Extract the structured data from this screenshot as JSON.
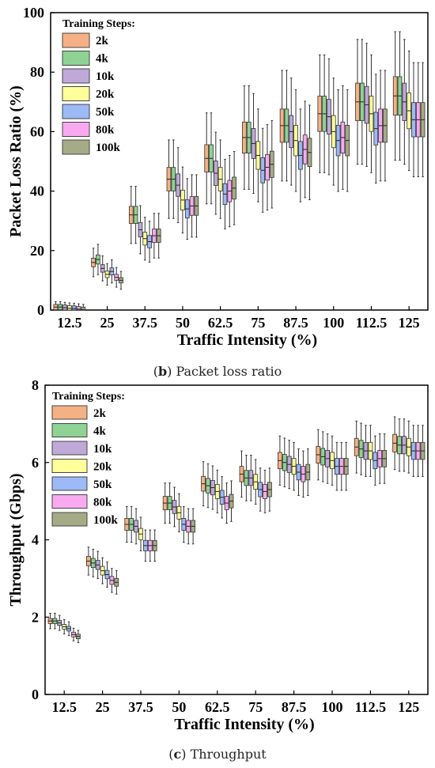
{
  "legend": {
    "title": "Training Steps:",
    "items": [
      {
        "label": "2k",
        "color": "#F4B183"
      },
      {
        "label": "4k",
        "color": "#8ED294"
      },
      {
        "label": "10k",
        "color": "#BFA9D9"
      },
      {
        "label": "20k",
        "color": "#FFFF99"
      },
      {
        "label": "50k",
        "color": "#9DB9F6"
      },
      {
        "label": "80k",
        "color": "#F9A9F0"
      },
      {
        "label": "100k",
        "color": "#A6AB87"
      }
    ]
  },
  "chart_data": [
    {
      "type": "box",
      "caption": {
        "label": "b",
        "text": "Packet loss ratio"
      },
      "xlabel": "Traffic Intensity (%)",
      "ylabel": "Packet Loss Ratio (%)",
      "ylim": [
        0,
        100
      ],
      "yticks": [
        0,
        20,
        40,
        60,
        80,
        100
      ],
      "categories": [
        "12.5",
        "25",
        "37.5",
        "50",
        "62.5",
        "75",
        "87.5",
        "100",
        "112.5",
        "125"
      ],
      "series": [
        {
          "name": "2k",
          "values": [
            1.0,
            16,
            32,
            44,
            51,
            58,
            62,
            66,
            70,
            72
          ]
        },
        {
          "name": "4k",
          "values": [
            1.0,
            17,
            32,
            44,
            51,
            58,
            62,
            66,
            70,
            72
          ]
        },
        {
          "name": "10k",
          "values": [
            0.8,
            14,
            27,
            42,
            46,
            56,
            60,
            65,
            69,
            70
          ]
        },
        {
          "name": "20k",
          "values": [
            0.6,
            12,
            24,
            37,
            44,
            52,
            57,
            60,
            66,
            67
          ]
        },
        {
          "name": "50k",
          "values": [
            0.5,
            13,
            23,
            34,
            39,
            47,
            52,
            57,
            61,
            64
          ]
        },
        {
          "name": "80k",
          "values": [
            0.3,
            11,
            25,
            35,
            40,
            48,
            54,
            58,
            62,
            64
          ]
        },
        {
          "name": "100k",
          "values": [
            0.1,
            10,
            25,
            35,
            41,
            49,
            53,
            57,
            62,
            64
          ]
        }
      ]
    },
    {
      "type": "box",
      "caption": {
        "label": "c",
        "text": "Throughput"
      },
      "xlabel": "Traffic Intensity (%)",
      "ylabel": "Throughput (Gbps)",
      "ylim": [
        0,
        8
      ],
      "yticks": [
        0,
        2,
        4,
        6,
        8
      ],
      "categories": [
        "12.5",
        "25",
        "37.5",
        "50",
        "62.5",
        "75",
        "87.5",
        "100",
        "112.5",
        "125"
      ],
      "series": [
        {
          "name": "2k",
          "values": [
            1.9,
            3.45,
            4.4,
            4.95,
            5.45,
            5.7,
            6.05,
            6.2,
            6.4,
            6.5
          ]
        },
        {
          "name": "4k",
          "values": [
            1.9,
            3.4,
            4.4,
            4.95,
            5.4,
            5.6,
            6.0,
            6.15,
            6.35,
            6.45
          ]
        },
        {
          "name": "10k",
          "values": [
            1.85,
            3.35,
            4.35,
            4.85,
            5.35,
            5.6,
            5.95,
            6.1,
            6.3,
            6.45
          ]
        },
        {
          "name": "20k",
          "values": [
            1.75,
            3.2,
            4.15,
            4.7,
            5.25,
            5.5,
            5.9,
            6.05,
            6.3,
            6.4
          ]
        },
        {
          "name": "50k",
          "values": [
            1.7,
            3.1,
            3.85,
            4.4,
            5.1,
            5.3,
            5.75,
            5.9,
            6.05,
            6.3
          ]
        },
        {
          "name": "80k",
          "values": [
            1.55,
            2.95,
            3.85,
            4.35,
            4.95,
            5.25,
            5.7,
            5.9,
            6.1,
            6.3
          ]
        },
        {
          "name": "100k",
          "values": [
            1.5,
            2.9,
            3.85,
            4.35,
            5.0,
            5.3,
            5.75,
            5.9,
            6.1,
            6.3
          ]
        }
      ]
    }
  ]
}
